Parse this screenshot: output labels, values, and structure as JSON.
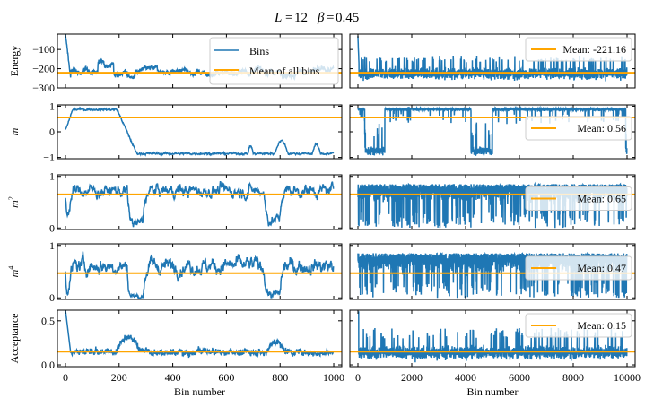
{
  "figure": {
    "title_L": "L",
    "title_L_value": "12",
    "title_beta": "β",
    "title_beta_value": "0.45",
    "colors": {
      "bins": "#1f77b4",
      "mean": "#ffa500"
    }
  },
  "chart_data": [
    {
      "type": "line",
      "panel": "left-energy",
      "ylabel": "Energy",
      "xlabel": "",
      "xlim": [
        -30,
        1030
      ],
      "ylim": [
        -300,
        -20
      ],
      "yticks": [
        -100,
        -200,
        -300
      ],
      "ytick_labels": [
        "−100",
        "−200",
        "−300"
      ],
      "xticks": [
        0,
        200,
        400,
        600,
        800,
        1000
      ],
      "xtick_labels": [],
      "series": [
        {
          "name": "Bins",
          "n_points": 1000,
          "start": -20,
          "level": -215,
          "range": [
            -280,
            -120
          ],
          "description": "sharp initial drop from ~-20 to ~-260, then fluctuates around -220"
        }
      ],
      "mean": -221.16,
      "legend": {
        "entries": [
          "Bins",
          "Mean of all bins"
        ],
        "position": "top-right"
      }
    },
    {
      "type": "line",
      "panel": "right-energy",
      "xlim": [
        -300,
        10300
      ],
      "ylim": [
        -300,
        -20
      ],
      "yticks": [
        -100,
        -200,
        -300
      ],
      "xticks": [
        0,
        2000,
        4000,
        6000,
        8000,
        10000
      ],
      "series": [
        {
          "name": "Bins",
          "n_points": 10000,
          "level": -225,
          "range": [
            -290,
            -140
          ]
        }
      ],
      "mean": -221.16,
      "legend": {
        "entries": [
          "Mean: -221.16"
        ],
        "position": "top-right"
      }
    },
    {
      "type": "line",
      "panel": "left-m",
      "ylabel": "m",
      "xlim": [
        -30,
        1030
      ],
      "ylim": [
        -1.05,
        1.05
      ],
      "yticks": [
        1,
        0,
        -1
      ],
      "ytick_labels": [
        "1",
        "0",
        "−1"
      ],
      "series": [
        {
          "name": "Bins",
          "n_points": 1000,
          "description": "starts ~0.1, rises to ~0.9 by bin 20, stays ~0.85 until bin 200, falls to ~-0.85 by bin 260 and stays near -0.85 with spikes to -0.3 around bins 700 and 780"
        }
      ],
      "mean": 0.56
    },
    {
      "type": "line",
      "panel": "right-m",
      "xlim": [
        -300,
        10300
      ],
      "ylim": [
        -1.05,
        1.05
      ],
      "series": [
        {
          "name": "Bins",
          "n_points": 10000,
          "description": "near +0.9 except negative plateaus ~-0.8 at bins 200-1000 and 4200-5000, final drop to -0.9 at 10000"
        }
      ],
      "mean": 0.56,
      "legend": {
        "entries": [
          "Mean: 0.56"
        ],
        "position": "right"
      }
    },
    {
      "type": "line",
      "panel": "left-m2",
      "ylabel": "m^2",
      "xlim": [
        -30,
        1030
      ],
      "ylim": [
        -0.03,
        1.03
      ],
      "yticks": [
        1,
        0
      ],
      "ytick_labels": [
        "1",
        "0"
      ],
      "series": [
        {
          "name": "Bins",
          "n_points": 1000,
          "level": 0.7,
          "range": [
            0.0,
            0.95
          ]
        }
      ],
      "mean": 0.65
    },
    {
      "type": "line",
      "panel": "right-m2",
      "xlim": [
        -300,
        10300
      ],
      "ylim": [
        -0.03,
        1.03
      ],
      "series": [
        {
          "name": "Bins",
          "n_points": 10000,
          "range": [
            0.0,
            0.97
          ]
        }
      ],
      "mean": 0.65,
      "legend": {
        "entries": [
          "Mean: 0.65"
        ],
        "position": "right"
      }
    },
    {
      "type": "line",
      "panel": "left-m4",
      "ylabel": "m^4",
      "xlim": [
        -30,
        1030
      ],
      "ylim": [
        -0.03,
        1.03
      ],
      "yticks": [
        1,
        0
      ],
      "ytick_labels": [
        "1",
        "0"
      ],
      "series": [
        {
          "name": "Bins",
          "n_points": 1000,
          "level": 0.5,
          "range": [
            0.0,
            0.95
          ]
        }
      ],
      "mean": 0.47
    },
    {
      "type": "line",
      "panel": "right-m4",
      "xlim": [
        -300,
        10300
      ],
      "ylim": [
        -0.03,
        1.03
      ],
      "series": [
        {
          "name": "Bins",
          "n_points": 10000,
          "range": [
            0.0,
            0.97
          ]
        }
      ],
      "mean": 0.47,
      "legend": {
        "entries": [
          "Mean: 0.47"
        ],
        "position": "right"
      }
    },
    {
      "type": "line",
      "panel": "left-acceptance",
      "ylabel": "Acceptance",
      "xlabel": "Bin number",
      "xlim": [
        -30,
        1030
      ],
      "ylim": [
        -0.02,
        0.62
      ],
      "yticks": [
        0.5,
        0.0
      ],
      "ytick_labels": [
        "0.5",
        "0.0"
      ],
      "xticks": [
        0,
        200,
        400,
        600,
        800,
        1000
      ],
      "xtick_labels": [
        "0",
        "200",
        "400",
        "600",
        "800",
        "1000"
      ],
      "series": [
        {
          "name": "Bins",
          "n_points": 1000,
          "start": 0.62,
          "level": 0.15,
          "range": [
            0.03,
            0.42
          ]
        }
      ],
      "mean": 0.15
    },
    {
      "type": "line",
      "panel": "right-acceptance",
      "xlabel": "Bin number",
      "xlim": [
        -300,
        10300
      ],
      "ylim": [
        -0.02,
        0.62
      ],
      "xticks": [
        0,
        2000,
        4000,
        6000,
        8000,
        10000
      ],
      "xtick_labels": [
        "0",
        "2000",
        "4000",
        "6000",
        "8000",
        "10000"
      ],
      "series": [
        {
          "name": "Bins",
          "n_points": 10000,
          "range": [
            0.02,
            0.6
          ]
        }
      ],
      "mean": 0.15,
      "legend": {
        "entries": [
          "Mean: 0.15"
        ],
        "position": "top-right"
      }
    }
  ]
}
